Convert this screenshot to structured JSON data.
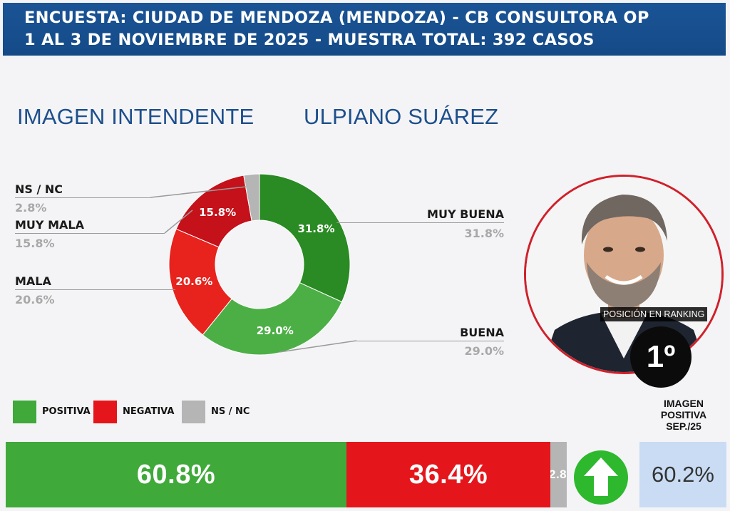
{
  "header": {
    "line1": "ENCUESTA: CIUDAD DE MENDOZA (MENDOZA) - CB CONSULTORA OP",
    "line2": "1 AL 3 DE NOVIEMBRE DE 2025 - MUESTRA TOTAL: 392 CASOS"
  },
  "subtitle": {
    "left": "IMAGEN INTENDENTE",
    "right": "ULPIANO SUÁREZ"
  },
  "colors": {
    "muy_buena": "#2a8a23",
    "buena": "#4caf46",
    "mala": "#e8221c",
    "muy_mala": "#c4111a",
    "ns_nc": "#b5b5b5",
    "positiva": "#3fa93a",
    "negativa": "#e5161b",
    "header_bg": "#1a5496",
    "ring": "#d0202a"
  },
  "chart_data": [
    {
      "type": "pie",
      "donut": true,
      "slices": [
        {
          "name": "MUY BUENA",
          "value": 31.8,
          "label": "31.8%",
          "value_text": "31.8%"
        },
        {
          "name": "BUENA",
          "value": 29.0,
          "label": "29.0%",
          "value_text": "29.0%"
        },
        {
          "name": "MALA",
          "value": 20.6,
          "label": "20.6%",
          "value_text": "20.6%"
        },
        {
          "name": "MUY MALA",
          "value": 15.8,
          "label": "15.8%",
          "value_text": "15.8%"
        },
        {
          "name": "NS / NC",
          "value": 2.8,
          "label": "",
          "value_text": "2.8%"
        }
      ]
    },
    {
      "type": "bar",
      "orientation": "horizontal",
      "stacked": true,
      "segments": [
        {
          "name": "POSITIVA",
          "value": 60.8,
          "label": "60.8%"
        },
        {
          "name": "NEGATIVA",
          "value": 36.4,
          "label": "36.4%"
        },
        {
          "name": "NS / NC",
          "value": 2.8,
          "label": "2.8%"
        }
      ],
      "legend": [
        "POSITIVA",
        "NEGATIVA",
        "NS / NC"
      ],
      "legend_position": "top-left"
    }
  ],
  "ranking": {
    "label": "POSICIÓN EN RANKING",
    "value": "1º"
  },
  "reference": {
    "label_lines": [
      "IMAGEN",
      "POSITIVA",
      "SEP./25"
    ],
    "value": "60.2%",
    "trend_icon": "arrow-up-icon"
  }
}
